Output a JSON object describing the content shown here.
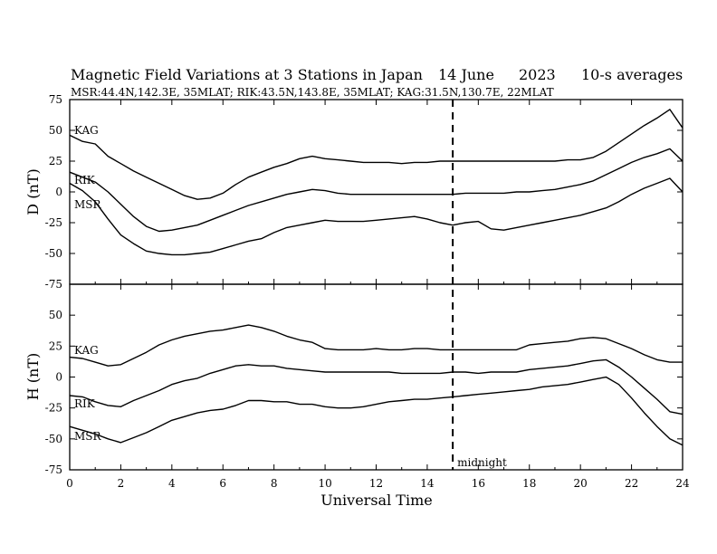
{
  "header": {
    "title": "Magnetic Field Variations at 3 Stations in Japan",
    "date": "14 June",
    "year": "2023",
    "averaging": "10-s averages",
    "stations_line": "MSR:44.4N,142.3E, 35MLAT;  RIK:43.5N,143.8E, 35MLAT;  KAG:31.5N,130.7E, 22MLAT"
  },
  "chart_data": [
    {
      "type": "line",
      "panel": "top",
      "ylabel": "D (nT)",
      "xlabel": "Universal Time",
      "xlim": [
        0,
        24
      ],
      "ylim": [
        -75,
        75
      ],
      "yticks": [
        75,
        50,
        25,
        0,
        -25,
        -50,
        -75
      ],
      "xticks": [
        0,
        2,
        4,
        6,
        8,
        10,
        12,
        14,
        16,
        18,
        20,
        22,
        24
      ],
      "x": [
        0,
        0.5,
        1,
        1.5,
        2,
        2.5,
        3,
        3.5,
        4,
        4.5,
        5,
        5.5,
        6,
        6.5,
        7,
        7.5,
        8,
        8.5,
        9,
        9.5,
        10,
        10.5,
        11,
        11.5,
        12,
        12.5,
        13,
        13.5,
        14,
        14.5,
        15,
        15.5,
        16,
        16.5,
        17,
        17.5,
        18,
        18.5,
        19,
        19.5,
        20,
        20.5,
        21,
        21.5,
        22,
        22.5,
        23,
        23.5,
        24
      ],
      "series": [
        {
          "name": "KAG",
          "values": [
            46,
            41,
            39,
            29,
            23,
            17,
            12,
            7,
            2,
            -3,
            -6,
            -5,
            -1,
            6,
            12,
            16,
            20,
            23,
            27,
            29,
            27,
            26,
            25,
            24,
            24,
            24,
            23,
            24,
            24,
            25,
            25,
            25,
            25,
            25,
            25,
            25,
            25,
            25,
            25,
            26,
            26,
            28,
            33,
            40,
            47,
            54,
            60,
            67,
            52
          ]
        },
        {
          "name": "RIK",
          "values": [
            16,
            12,
            8,
            0,
            -10,
            -20,
            -28,
            -32,
            -31,
            -29,
            -27,
            -23,
            -19,
            -15,
            -11,
            -8,
            -5,
            -2,
            0,
            2,
            1,
            -1,
            -2,
            -2,
            -2,
            -2,
            -2,
            -2,
            -2,
            -2,
            -2,
            -1,
            -1,
            -1,
            -1,
            0,
            0,
            1,
            2,
            4,
            6,
            9,
            14,
            19,
            24,
            28,
            31,
            35,
            25
          ]
        },
        {
          "name": "MSR",
          "values": [
            7,
            1,
            -8,
            -22,
            -35,
            -42,
            -48,
            -50,
            -51,
            -51,
            -50,
            -49,
            -46,
            -43,
            -40,
            -38,
            -33,
            -29,
            -27,
            -25,
            -23,
            -24,
            -24,
            -24,
            -23,
            -22,
            -21,
            -20,
            -22,
            -25,
            -27,
            -25,
            -24,
            -30,
            -31,
            -29,
            -27,
            -25,
            -23,
            -21,
            -19,
            -16,
            -13,
            -8,
            -2,
            3,
            7,
            11,
            0
          ]
        }
      ]
    },
    {
      "type": "line",
      "panel": "bottom",
      "ylabel": "H (nT)",
      "xlabel": "Universal Time",
      "xlim": [
        0,
        24
      ],
      "ylim": [
        -75,
        75
      ],
      "yticks": [
        50,
        25,
        0,
        -25,
        -50,
        -75
      ],
      "xticks": [
        0,
        2,
        4,
        6,
        8,
        10,
        12,
        14,
        16,
        18,
        20,
        22,
        24
      ],
      "x": [
        0,
        0.5,
        1,
        1.5,
        2,
        2.5,
        3,
        3.5,
        4,
        4.5,
        5,
        5.5,
        6,
        6.5,
        7,
        7.5,
        8,
        8.5,
        9,
        9.5,
        10,
        10.5,
        11,
        11.5,
        12,
        12.5,
        13,
        13.5,
        14,
        14.5,
        15,
        15.5,
        16,
        16.5,
        17,
        17.5,
        18,
        18.5,
        19,
        19.5,
        20,
        20.5,
        21,
        21.5,
        22,
        22.5,
        23,
        23.5,
        24
      ],
      "series": [
        {
          "name": "KAG",
          "values": [
            16,
            15,
            12,
            9,
            10,
            15,
            20,
            26,
            30,
            33,
            35,
            37,
            38,
            40,
            42,
            40,
            37,
            33,
            30,
            28,
            23,
            22,
            22,
            22,
            23,
            22,
            22,
            23,
            23,
            22,
            22,
            22,
            22,
            22,
            22,
            22,
            26,
            27,
            28,
            29,
            31,
            32,
            31,
            27,
            23,
            18,
            14,
            12,
            12
          ]
        },
        {
          "name": "RIK",
          "values": [
            -15,
            -16,
            -20,
            -23,
            -24,
            -19,
            -15,
            -11,
            -6,
            -3,
            -1,
            3,
            6,
            9,
            10,
            9,
            9,
            7,
            6,
            5,
            4,
            4,
            4,
            4,
            4,
            4,
            3,
            3,
            3,
            3,
            4,
            4,
            3,
            4,
            4,
            4,
            6,
            7,
            8,
            9,
            11,
            13,
            14,
            8,
            0,
            -9,
            -18,
            -28,
            -30
          ]
        },
        {
          "name": "MSR",
          "values": [
            -40,
            -43,
            -46,
            -50,
            -53,
            -49,
            -45,
            -40,
            -35,
            -32,
            -29,
            -27,
            -26,
            -23,
            -19,
            -19,
            -20,
            -20,
            -22,
            -22,
            -24,
            -25,
            -25,
            -24,
            -22,
            -20,
            -19,
            -18,
            -18,
            -17,
            -16,
            -15,
            -14,
            -13,
            -12,
            -11,
            -10,
            -8,
            -7,
            -6,
            -4,
            -2,
            0,
            -6,
            -17,
            -29,
            -40,
            -50,
            -55
          ]
        }
      ]
    }
  ],
  "markers": {
    "midnight_x": 15,
    "midnight_label": "midnight"
  },
  "axes": {
    "xlabel": "Universal Time",
    "top_ylabel": "D (nT)",
    "bottom_ylabel": "H (nT)"
  },
  "labels": {
    "top": {
      "KAG": "KAG",
      "RIK": "RIK",
      "MSR": "MSR"
    },
    "bottom": {
      "KAG": "KAG",
      "RIK": "RIK",
      "MSR": "MSR"
    }
  }
}
